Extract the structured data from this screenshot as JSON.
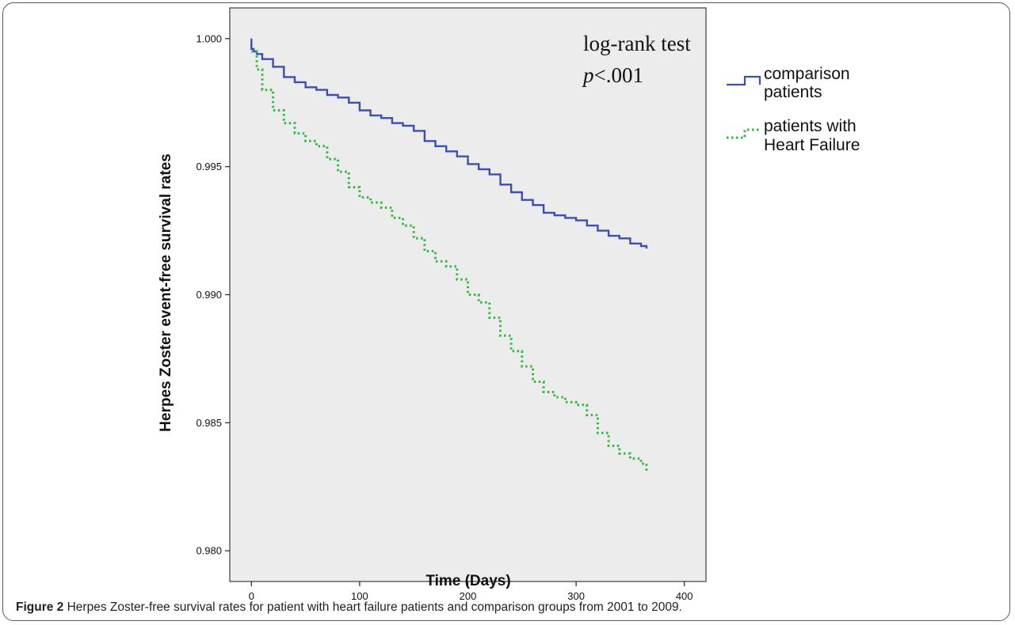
{
  "figure": {
    "caption_label": "Figure 2",
    "caption_text": "Herpes Zoster-free survival rates for patient with heart failure patients and comparison groups from 2001 to 2009."
  },
  "chart_data": {
    "type": "line",
    "title": "",
    "xlabel": "Time (Days)",
    "ylabel": "Herpes Zoster event-free survival rates",
    "xlim": [
      -20,
      420
    ],
    "ylim": [
      0.9788,
      1.0012
    ],
    "x_ticks": [
      0,
      100,
      200,
      300,
      400
    ],
    "y_ticks": [
      0.98,
      0.985,
      0.99,
      0.995,
      1.0
    ],
    "y_tick_labels": [
      "0.980",
      "0.985",
      "0.990",
      "0.995",
      "1.000"
    ],
    "grid": false,
    "background_color": "#ececec",
    "legend_position": "right-outside",
    "annotation": {
      "line1": "log-rank test",
      "line2_prefix": "p",
      "line2_rest": "<.001"
    },
    "series": [
      {
        "name": "comparison patients",
        "legend_line1": "comparison",
        "legend_line2": "patients",
        "color": "#3a4fb4",
        "style": "solid",
        "x": [
          0,
          0,
          2,
          5,
          10,
          20,
          30,
          40,
          50,
          60,
          70,
          80,
          90,
          100,
          110,
          120,
          130,
          140,
          150,
          160,
          170,
          180,
          190,
          200,
          210,
          220,
          230,
          240,
          250,
          260,
          270,
          280,
          290,
          300,
          310,
          320,
          330,
          340,
          350,
          360,
          365
        ],
        "y": [
          1.0,
          0.9996,
          0.9995,
          0.9994,
          0.9992,
          0.9989,
          0.9985,
          0.9983,
          0.9981,
          0.998,
          0.9978,
          0.9977,
          0.9975,
          0.9972,
          0.997,
          0.9969,
          0.9967,
          0.9966,
          0.9964,
          0.996,
          0.9958,
          0.9956,
          0.9954,
          0.9951,
          0.9949,
          0.9947,
          0.9943,
          0.994,
          0.9937,
          0.9935,
          0.9932,
          0.9931,
          0.993,
          0.9929,
          0.9927,
          0.9925,
          0.9923,
          0.9922,
          0.992,
          0.9919,
          0.9918
        ]
      },
      {
        "name": "patients with Heart Failure",
        "legend_line1": "patients with",
        "legend_line2": "Heart Failure",
        "color": "#2ebd3a",
        "style": "dotted",
        "x": [
          0,
          5,
          10,
          20,
          30,
          40,
          50,
          60,
          70,
          80,
          90,
          100,
          110,
          120,
          130,
          140,
          150,
          160,
          170,
          180,
          190,
          200,
          210,
          220,
          230,
          240,
          250,
          260,
          270,
          280,
          290,
          300,
          310,
          320,
          330,
          340,
          350,
          360,
          365
        ],
        "y": [
          0.9995,
          0.9988,
          0.998,
          0.9972,
          0.9967,
          0.9963,
          0.996,
          0.9958,
          0.9953,
          0.9948,
          0.9942,
          0.9938,
          0.9936,
          0.9934,
          0.993,
          0.9927,
          0.9922,
          0.9917,
          0.9913,
          0.9911,
          0.9906,
          0.99,
          0.9897,
          0.9891,
          0.9884,
          0.9878,
          0.9872,
          0.9866,
          0.9862,
          0.986,
          0.9858,
          0.9857,
          0.9853,
          0.9846,
          0.9841,
          0.9838,
          0.9836,
          0.9834,
          0.9831
        ]
      }
    ]
  }
}
